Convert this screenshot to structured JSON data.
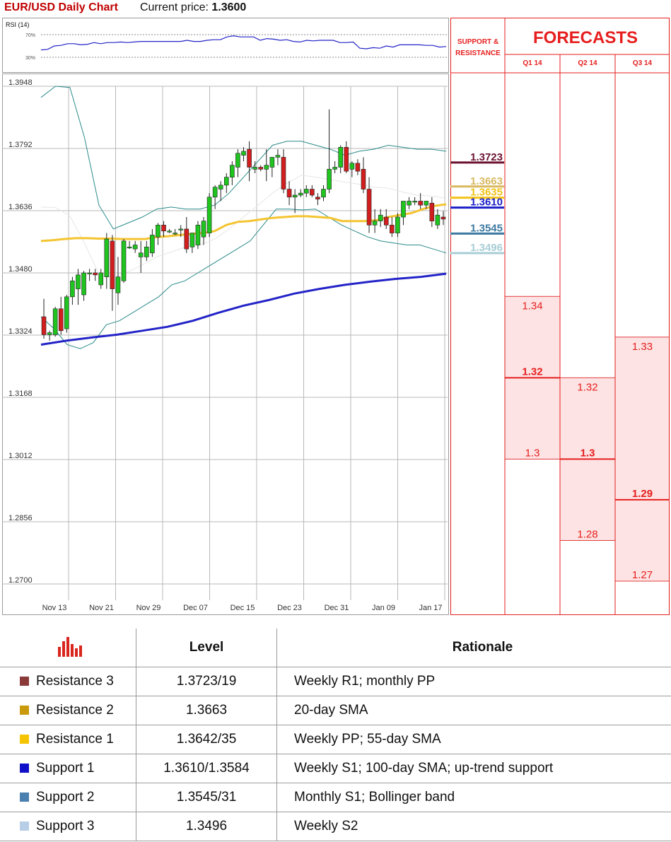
{
  "header": {
    "title": "EUR/USD Daily Chart",
    "price_label": "Current price:",
    "price_value": "1.3600"
  },
  "rsi": {
    "label": "RSI (14)",
    "upper": "70%",
    "lower": "30%",
    "values": [
      43,
      44,
      50,
      51,
      54,
      54,
      52,
      53,
      56,
      54,
      56,
      56,
      57,
      56,
      57,
      58,
      58,
      58,
      58,
      58,
      58,
      58,
      60,
      58,
      58,
      60,
      61,
      61,
      66,
      68,
      66,
      66,
      66,
      60,
      63,
      62,
      60,
      61,
      58,
      57,
      60,
      59,
      60,
      60,
      60,
      56,
      56,
      57,
      46,
      45,
      47,
      46,
      50,
      48,
      52,
      52,
      52,
      52,
      51,
      51,
      48,
      49
    ]
  },
  "chart_data": {
    "type": "candlestick",
    "title": "EUR/USD Daily Chart",
    "y_ticks": [
      "1.3948",
      "1.3792",
      "1.3636",
      "1.3480",
      "1.3324",
      "1.3168",
      "1.3012",
      "1.2856",
      "1.2700"
    ],
    "ylim": [
      1.27,
      1.3948
    ],
    "x_labels": [
      "Nov 13",
      "Nov 21",
      "Nov 29",
      "Dec 07",
      "Dec 15",
      "Dec 23",
      "Dec 31",
      "Jan 09",
      "Jan 17"
    ],
    "candles": [
      [
        1.337,
        1.3415,
        1.3315,
        1.3325
      ],
      [
        1.3325,
        1.3335,
        1.331,
        1.333
      ],
      [
        1.3325,
        1.3395,
        1.332,
        1.339
      ],
      [
        1.339,
        1.342,
        1.3325,
        1.3335
      ],
      [
        1.334,
        1.3425,
        1.333,
        1.342
      ],
      [
        1.342,
        1.347,
        1.34,
        1.346
      ],
      [
        1.344,
        1.349,
        1.34,
        1.3475
      ],
      [
        1.3425,
        1.3485,
        1.341,
        1.348
      ],
      [
        1.348,
        1.349,
        1.346,
        1.348
      ],
      [
        1.348,
        1.349,
        1.346,
        1.3475
      ],
      [
        1.345,
        1.349,
        1.344,
        1.348
      ],
      [
        1.347,
        1.358,
        1.344,
        1.3565
      ],
      [
        1.356,
        1.3575,
        1.3385,
        1.344
      ],
      [
        1.343,
        1.352,
        1.34,
        1.347
      ],
      [
        1.346,
        1.3565,
        1.3455,
        1.356
      ],
      [
        1.3545,
        1.356,
        1.354,
        1.3545
      ],
      [
        1.354,
        1.356,
        1.353,
        1.355
      ],
      [
        1.352,
        1.356,
        1.348,
        1.353
      ],
      [
        1.352,
        1.356,
        1.351,
        1.3545
      ],
      [
        1.353,
        1.359,
        1.352,
        1.3575
      ],
      [
        1.357,
        1.3605,
        1.355,
        1.36
      ],
      [
        1.36,
        1.361,
        1.357,
        1.3585
      ],
      [
        1.3585,
        1.359,
        1.358,
        1.3585
      ],
      [
        1.358,
        1.359,
        1.3575,
        1.358
      ],
      [
        1.359,
        1.36,
        1.357,
        1.359
      ],
      [
        1.359,
        1.362,
        1.353,
        1.354
      ],
      [
        1.3545,
        1.358,
        1.353,
        1.358
      ],
      [
        1.355,
        1.361,
        1.354,
        1.36
      ],
      [
        1.357,
        1.362,
        1.355,
        1.361
      ],
      [
        1.358,
        1.368,
        1.357,
        1.367
      ],
      [
        1.367,
        1.37,
        1.364,
        1.3695
      ],
      [
        1.369,
        1.371,
        1.366,
        1.37
      ],
      [
        1.37,
        1.373,
        1.368,
        1.372
      ],
      [
        1.372,
        1.376,
        1.37,
        1.375
      ],
      [
        1.3745,
        1.379,
        1.372,
        1.378
      ],
      [
        1.3775,
        1.3795,
        1.376,
        1.3785
      ],
      [
        1.379,
        1.381,
        1.371,
        1.3745
      ],
      [
        1.374,
        1.376,
        1.373,
        1.3745
      ],
      [
        1.3745,
        1.375,
        1.3735,
        1.374
      ],
      [
        1.374,
        1.379,
        1.371,
        1.375
      ],
      [
        1.3745,
        1.377,
        1.372,
        1.377
      ],
      [
        1.377,
        1.379,
        1.375,
        1.3775
      ],
      [
        1.377,
        1.379,
        1.368,
        1.369
      ],
      [
        1.369,
        1.371,
        1.365,
        1.367
      ],
      [
        1.367,
        1.369,
        1.363,
        1.3675
      ],
      [
        1.3675,
        1.369,
        1.367,
        1.368
      ],
      [
        1.368,
        1.37,
        1.367,
        1.369
      ],
      [
        1.369,
        1.37,
        1.367,
        1.3675
      ],
      [
        1.367,
        1.368,
        1.365,
        1.3665
      ],
      [
        1.367,
        1.37,
        1.366,
        1.369
      ],
      [
        1.369,
        1.389,
        1.368,
        1.374
      ],
      [
        1.374,
        1.376,
        1.373,
        1.3745
      ],
      [
        1.3745,
        1.38,
        1.373,
        1.3795
      ],
      [
        1.3795,
        1.381,
        1.373,
        1.3735
      ],
      [
        1.374,
        1.376,
        1.372,
        1.3755
      ],
      [
        1.3755,
        1.3765,
        1.3725,
        1.3735
      ],
      [
        1.374,
        1.377,
        1.368,
        1.369
      ],
      [
        1.369,
        1.372,
        1.358,
        1.36
      ],
      [
        1.36,
        1.364,
        1.358,
        1.361
      ],
      [
        1.361,
        1.364,
        1.3595,
        1.3625
      ],
      [
        1.362,
        1.364,
        1.359,
        1.36
      ],
      [
        1.36,
        1.362,
        1.357,
        1.358
      ],
      [
        1.358,
        1.363,
        1.357,
        1.362
      ],
      [
        1.362,
        1.366,
        1.36,
        1.366
      ],
      [
        1.365,
        1.367,
        1.364,
        1.366
      ],
      [
        1.366,
        1.367,
        1.365,
        1.366
      ],
      [
        1.366,
        1.368,
        1.364,
        1.365
      ],
      [
        1.365,
        1.366,
        1.364,
        1.366
      ],
      [
        1.3655,
        1.367,
        1.3595,
        1.361
      ],
      [
        1.36,
        1.364,
        1.359,
        1.3625
      ],
      [
        1.362,
        1.3635,
        1.36,
        1.3615
      ]
    ],
    "sma20": [
      1.356,
      1.3562,
      1.3565,
      1.3567,
      1.3567,
      1.3566,
      1.3566,
      1.3565,
      1.3565,
      1.3565,
      1.357,
      1.3572,
      1.3575,
      1.3578,
      1.358,
      1.3585,
      1.36,
      1.3608,
      1.361,
      1.3614,
      1.3618,
      1.362,
      1.3622,
      1.3622,
      1.362,
      1.3618,
      1.361,
      1.361,
      1.361,
      1.3612,
      1.362,
      1.3625,
      1.363,
      1.364,
      1.3648,
      1.3652
    ],
    "sma100": [
      1.33,
      1.331,
      1.3318,
      1.3325,
      1.3335,
      1.3345,
      1.336,
      1.338,
      1.3398,
      1.3412,
      1.3428,
      1.344,
      1.345,
      1.3458,
      1.3465,
      1.347,
      1.3478
    ],
    "bb_upper": [
      1.392,
      1.3948,
      1.3945,
      1.382,
      1.365,
      1.359,
      1.3605,
      1.362,
      1.364,
      1.3645,
      1.364,
      1.364,
      1.365,
      1.368,
      1.372,
      1.376,
      1.38,
      1.381,
      1.381,
      1.38,
      1.379,
      1.3775,
      1.3785,
      1.379,
      1.38,
      1.3795,
      1.379,
      1.379,
      1.3785
    ],
    "bb_lower": [
      1.337,
      1.334,
      1.33,
      1.329,
      1.3305,
      1.335,
      1.336,
      1.338,
      1.34,
      1.342,
      1.345,
      1.346,
      1.348,
      1.35,
      1.352,
      1.354,
      1.356,
      1.36,
      1.364,
      1.364,
      1.3638,
      1.364,
      1.362,
      1.36,
      1.3585,
      1.357,
      1.356,
      1.3555,
      1.355,
      1.355,
      1.354,
      1.353
    ],
    "sr_levels": [
      {
        "value": 1.3723,
        "label": "1.3723",
        "color": "#6a1030"
      },
      {
        "value": 1.3663,
        "label": "1.3663",
        "color": "#d8b860"
      },
      {
        "value": 1.3635,
        "label": "1.3635",
        "color": "#f2c318"
      },
      {
        "value": 1.361,
        "label": "1.3610",
        "color": "#1a1ec8"
      },
      {
        "value": 1.3545,
        "label": "1.3545",
        "color": "#3d7aa0"
      },
      {
        "value": 1.3496,
        "label": "1.3496",
        "color": "#a8cdd6"
      }
    ],
    "colors": {
      "up": "#1fc41f",
      "down": "#d21e1e",
      "sma20": "#f4c430",
      "sma100": "#2323c8",
      "bollinger": "#2a8a8a"
    }
  },
  "forecasts": {
    "title": "FORECASTS",
    "sr_header": [
      "SUPPORT &",
      "RESISTANCE"
    ],
    "quarters": [
      {
        "label": "Q1 14",
        "high": "1.34",
        "mid": "1.32",
        "low": "1.3",
        "high_value": 1.34,
        "mid_value": 1.32,
        "low_value": 1.3
      },
      {
        "label": "Q2 14",
        "high": "1.32",
        "mid": "1.3",
        "low": "1.28",
        "high_value": 1.32,
        "mid_value": 1.3,
        "low_value": 1.28
      },
      {
        "label": "Q3 14",
        "high": "1.33",
        "mid": "1.29",
        "low": "1.27",
        "high_value": 1.33,
        "mid_value": 1.29,
        "low_value": 1.27
      }
    ]
  },
  "table": {
    "headers": {
      "level": "Level",
      "rationale": "Rationale"
    },
    "rows": [
      {
        "name": "Resistance 3",
        "level": "1.3723/19",
        "rationale": "Weekly R1; monthly PP",
        "color": "#8b3a3a"
      },
      {
        "name": "Resistance 2",
        "level": "1.3663",
        "rationale": "20-day SMA",
        "color": "#c89a0c"
      },
      {
        "name": "Resistance 1",
        "level": "1.3642/35",
        "rationale": "Weekly PP; 55-day SMA",
        "color": "#f5c400"
      },
      {
        "name": "Support 1",
        "level": "1.3610/1.3584",
        "rationale": "Weekly S1; 100-day SMA; up-trend support",
        "color": "#1010c8"
      },
      {
        "name": "Support 2",
        "level": "1.3545/31",
        "rationale": "Monthly S1; Bollinger band",
        "color": "#4a7fb0"
      },
      {
        "name": "Support 3",
        "level": "1.3496",
        "rationale": "Weekly S2",
        "color": "#b8cde6"
      }
    ]
  }
}
